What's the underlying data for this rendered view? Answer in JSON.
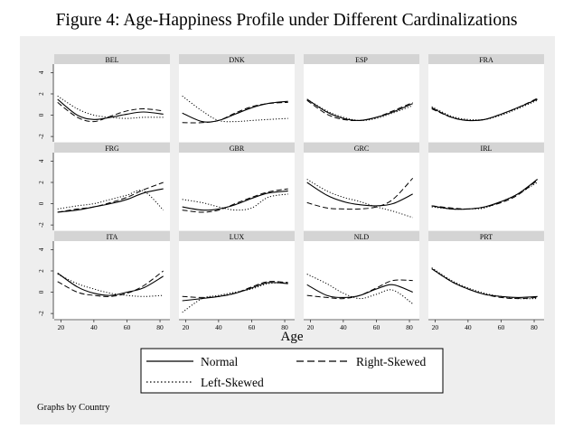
{
  "figure": {
    "caption": "Figure 4: Age-Happiness Profile under Different Cardinalizations",
    "note": "Graphs by Country"
  },
  "colors": {
    "panel_bg": "#ffffff",
    "outer_bg": "#eeeeee",
    "header_bg": "#d4d4d4",
    "line": "#000000"
  },
  "chart_data": {
    "type": "line",
    "xlabel": "Age",
    "ylabel": "",
    "xlim": [
      16,
      86
    ],
    "ylim": [
      -2.5,
      4.8
    ],
    "xticks": [
      20,
      40,
      60,
      80
    ],
    "yticks": [
      -2,
      0,
      2,
      4
    ],
    "ages": [
      18,
      30,
      40,
      50,
      60,
      70,
      82
    ],
    "legend": [
      {
        "key": "normal",
        "label": "Normal",
        "dash": "solid"
      },
      {
        "key": "right",
        "label": "Right-Skewed",
        "dash": "dashed"
      },
      {
        "key": "left",
        "label": "Left-Skewed",
        "dash": "dotted"
      }
    ],
    "panels": [
      {
        "country": "BEL",
        "normal": [
          1.5,
          0.0,
          -0.4,
          -0.2,
          0.1,
          0.3,
          0.1
        ],
        "right": [
          1.2,
          -0.2,
          -0.6,
          -0.1,
          0.4,
          0.6,
          0.4
        ],
        "left": [
          1.8,
          0.6,
          0.0,
          -0.2,
          -0.3,
          -0.2,
          -0.2
        ]
      },
      {
        "country": "DNK",
        "normal": [
          0.2,
          -0.6,
          -0.5,
          0.1,
          0.7,
          1.1,
          1.3
        ],
        "right": [
          -0.7,
          -0.7,
          -0.5,
          0.2,
          0.8,
          1.1,
          1.2
        ],
        "left": [
          1.8,
          0.4,
          -0.5,
          -0.6,
          -0.5,
          -0.4,
          -0.3
        ]
      },
      {
        "country": "ESP",
        "normal": [
          1.5,
          0.3,
          -0.3,
          -0.5,
          -0.2,
          0.3,
          1.1
        ],
        "right": [
          1.4,
          0.1,
          -0.4,
          -0.5,
          -0.2,
          0.4,
          1.2
        ],
        "left": [
          1.5,
          0.4,
          -0.2,
          -0.5,
          -0.3,
          0.2,
          0.9
        ]
      },
      {
        "country": "FRA",
        "normal": [
          0.7,
          -0.2,
          -0.5,
          -0.4,
          0.1,
          0.7,
          1.5
        ],
        "right": [
          0.6,
          -0.2,
          -0.5,
          -0.4,
          0.1,
          0.7,
          1.6
        ],
        "left": [
          0.8,
          -0.1,
          -0.4,
          -0.4,
          0.0,
          0.6,
          1.4
        ]
      },
      {
        "country": "FRG",
        "normal": [
          -0.8,
          -0.6,
          -0.3,
          0.0,
          0.4,
          1.0,
          1.4
        ],
        "right": [
          -0.8,
          -0.5,
          -0.3,
          0.1,
          0.6,
          1.3,
          2.0
        ],
        "left": [
          -0.5,
          -0.2,
          0.0,
          0.4,
          0.8,
          1.2,
          -0.6
        ]
      },
      {
        "country": "GBR",
        "normal": [
          -0.3,
          -0.6,
          -0.5,
          -0.1,
          0.5,
          1.0,
          1.2
        ],
        "right": [
          -0.6,
          -0.8,
          -0.6,
          0.0,
          0.6,
          1.1,
          1.4
        ],
        "left": [
          0.4,
          0.1,
          -0.3,
          -0.6,
          -0.4,
          0.6,
          0.9
        ]
      },
      {
        "country": "GRC",
        "normal": [
          2.0,
          0.8,
          0.2,
          -0.1,
          -0.2,
          0.0,
          0.9
        ],
        "right": [
          0.1,
          -0.4,
          -0.5,
          -0.5,
          -0.3,
          0.4,
          2.4
        ],
        "left": [
          2.3,
          1.2,
          0.6,
          0.2,
          -0.3,
          -0.7,
          -1.3
        ]
      },
      {
        "country": "IRL",
        "normal": [
          -0.2,
          -0.5,
          -0.5,
          -0.3,
          0.2,
          0.9,
          2.3
        ],
        "right": [
          -0.2,
          -0.4,
          -0.5,
          -0.3,
          0.1,
          0.8,
          2.2
        ],
        "left": [
          -0.3,
          -0.5,
          -0.5,
          -0.4,
          0.2,
          0.9,
          2.0
        ]
      },
      {
        "country": "ITA",
        "normal": [
          1.8,
          0.5,
          -0.1,
          -0.3,
          0.0,
          0.4,
          1.5
        ],
        "right": [
          1.0,
          0.0,
          -0.3,
          -0.4,
          -0.1,
          0.6,
          2.0
        ],
        "left": [
          1.7,
          0.8,
          0.3,
          -0.1,
          -0.3,
          -0.4,
          -0.3
        ]
      },
      {
        "country": "LUX",
        "normal": [
          -0.8,
          -0.6,
          -0.4,
          -0.1,
          0.4,
          0.9,
          0.8
        ],
        "right": [
          -0.4,
          -0.5,
          -0.4,
          -0.1,
          0.5,
          1.0,
          0.9
        ],
        "left": [
          -1.9,
          -0.6,
          -0.3,
          0.0,
          0.3,
          0.8,
          0.9
        ]
      },
      {
        "country": "NLD",
        "normal": [
          0.7,
          -0.3,
          -0.5,
          -0.3,
          0.3,
          0.7,
          0.0
        ],
        "right": [
          -0.3,
          -0.5,
          -0.6,
          -0.3,
          0.4,
          1.1,
          1.1
        ],
        "left": [
          1.7,
          0.8,
          -0.1,
          -0.6,
          -0.2,
          0.2,
          -1.1
        ]
      },
      {
        "country": "PRT",
        "normal": [
          2.2,
          1.0,
          0.3,
          -0.2,
          -0.4,
          -0.5,
          -0.4
        ],
        "right": [
          2.2,
          1.0,
          0.3,
          -0.2,
          -0.5,
          -0.6,
          -0.5
        ],
        "left": [
          2.3,
          1.1,
          0.4,
          -0.1,
          -0.4,
          -0.6,
          -0.6
        ]
      }
    ]
  }
}
